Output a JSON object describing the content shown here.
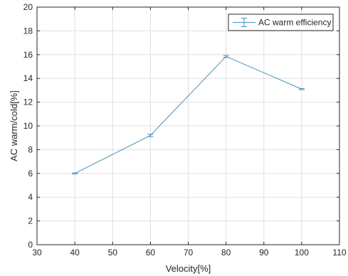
{
  "chart_data": {
    "type": "line",
    "x": [
      40,
      60,
      80,
      100
    ],
    "series": [
      {
        "name": "AC warm efficiency",
        "values": [
          6.0,
          9.2,
          15.85,
          13.1
        ],
        "error": [
          0.05,
          0.1,
          0.08,
          0.05
        ],
        "color": "#4a90b8"
      }
    ],
    "xlabel": "Velocity[%]",
    "ylabel": "AC warm/cold[%]",
    "xlim": [
      30,
      110
    ],
    "ylim": [
      0,
      20
    ],
    "xticks": [
      30,
      40,
      50,
      60,
      70,
      80,
      90,
      100,
      110
    ],
    "yticks": [
      0,
      2,
      4,
      6,
      8,
      10,
      12,
      14,
      16,
      18,
      20
    ],
    "grid": true,
    "legend_position": "top-right",
    "axis_color": "#262626",
    "grid_color": "#dfdfdf"
  }
}
